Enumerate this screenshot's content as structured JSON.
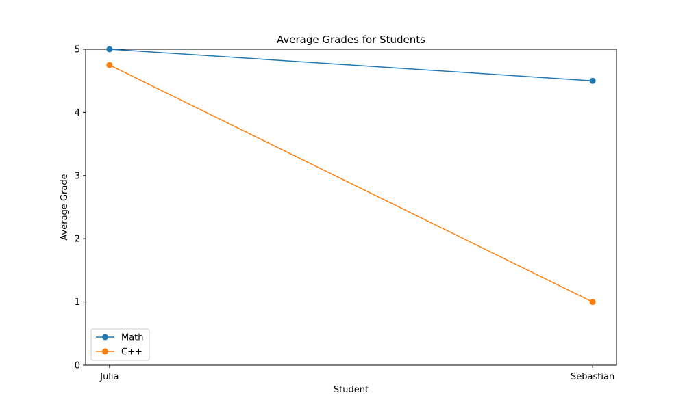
{
  "chart_data": {
    "type": "line",
    "title": "Average Grades for Students",
    "xlabel": "Student",
    "ylabel": "Average Grade",
    "categories": [
      "Julia",
      "Sebastian"
    ],
    "ylim": [
      0,
      5
    ],
    "yticks": [
      0,
      1,
      2,
      3,
      4,
      5
    ],
    "grid": false,
    "legend_position": "lower-left",
    "series": [
      {
        "name": "Math",
        "values": [
          5,
          4.5
        ],
        "color": "#1f77b4",
        "marker": "circle"
      },
      {
        "name": "C++",
        "values": [
          4.75,
          1
        ],
        "color": "#ff7f0e",
        "marker": "circle"
      }
    ]
  }
}
